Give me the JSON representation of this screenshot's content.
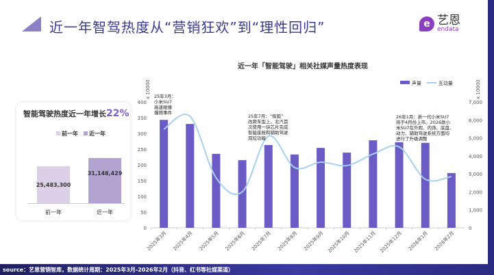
{
  "header": {
    "title": "近一年智驾热度从“营销狂欢”到“理性回归”",
    "logo_cn": "艺恩",
    "logo_en": "endata"
  },
  "summary": {
    "title_prefix": "智能驾驶热度近一年增长",
    "growth": "22%",
    "legend": [
      "前一年",
      "近一年"
    ],
    "colors": [
      "#dcd0e8",
      "#b3a3d0"
    ],
    "bars": [
      {
        "label": "前一年",
        "value": 25483300,
        "display": "25,483,300"
      },
      {
        "label": "近一年",
        "value": 31148429,
        "display": "31,148,429"
      }
    ]
  },
  "chart_data": {
    "type": "bar+line",
    "title": "近一年「智能驾驶」相关社媒声量热度表现",
    "categories": [
      "2025年3月",
      "2025年4月",
      "2025年5月",
      "2025年6月",
      "2025年7月",
      "2025年8月",
      "2025年9月",
      "2025年10月",
      "2025年11月",
      "2025年12月",
      "2026年1月",
      "2026年2月"
    ],
    "series": [
      {
        "name": "声量",
        "type": "bar",
        "axis": "left",
        "color": "#6a5cc4",
        "values": [
          343,
          330,
          235,
          215,
          263,
          233,
          254,
          239,
          278,
          272,
          270,
          174
        ]
      },
      {
        "name": "互动量",
        "type": "line",
        "axis": "right",
        "color": "#a8d0ee",
        "values": [
          5480,
          6200,
          2780,
          2000,
          5100,
          3350,
          3650,
          3460,
          4100,
          4500,
          2700,
          2850
        ]
      }
    ],
    "y_left": {
      "unit": "x 10000",
      "ticks": [
        "0",
        "50",
        "100",
        "150",
        "200",
        "250",
        "300",
        "350",
        "400"
      ],
      "range": [
        0,
        400
      ]
    },
    "y_right": {
      "unit": "x 10000",
      "ticks": [
        "0",
        "1,000",
        "2,000",
        "3,000",
        "4,000",
        "5,000",
        "6,000",
        "7,000"
      ],
      "range": [
        0,
        7000
      ]
    },
    "legend": "top-right",
    "annotations": [
      {
        "category": "2025年3月",
        "lines": [
          "25年3月：",
          "小米SU7",
          "高速碰撞",
          "爆燃事件"
        ]
      },
      {
        "category": "2025年7月",
        "lines": [
          "25年7月：“极狐”",
          "改款车型上，北汽首",
          "次使用一块芯片完成",
          "智能座舱和辅助驾驶",
          "双控功能"
        ]
      },
      {
        "category": "2026年1月",
        "lines": [
          "26年1月：新一代小米SU7",
          "将于4月份上市。2026款小",
          "米SU7在外观、内饰、底盘、",
          "动力、辅助驾驶系统方面均",
          "进行了升级调整"
        ]
      }
    ]
  },
  "footer": {
    "source": "source：艺恩营销智库，数据统计周期：2025年3月-2026年2月（抖音、红书等社媒渠道）"
  }
}
